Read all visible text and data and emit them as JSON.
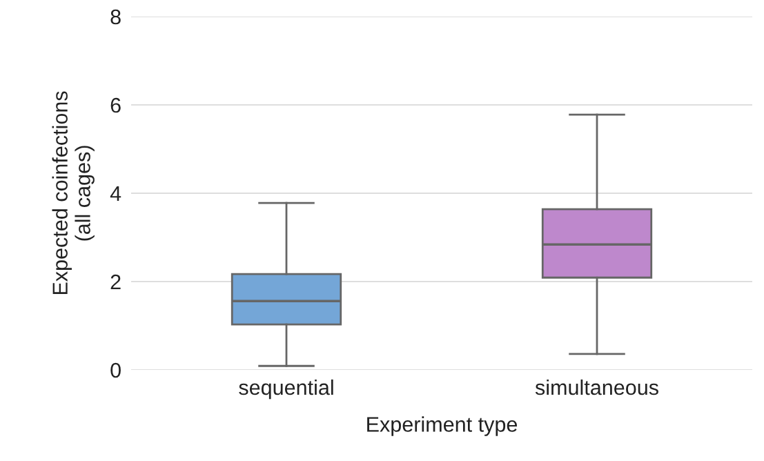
{
  "chart_data": {
    "type": "box",
    "xlabel": "Experiment type",
    "ylabel": "Expected coinfections\n(all cages)",
    "categories": [
      "sequential",
      "simultaneous"
    ],
    "colors": [
      "#74a6d7",
      "#be88cc"
    ],
    "boxes": [
      {
        "low": 0.09,
        "q1": 1.03,
        "median": 1.56,
        "q3": 2.17,
        "high": 3.78
      },
      {
        "low": 0.36,
        "q1": 2.09,
        "median": 2.84,
        "q3": 3.64,
        "high": 5.78
      }
    ],
    "ylim": [
      0,
      8
    ],
    "yticks": [
      0,
      2,
      4,
      6,
      8
    ],
    "grid": "y"
  }
}
